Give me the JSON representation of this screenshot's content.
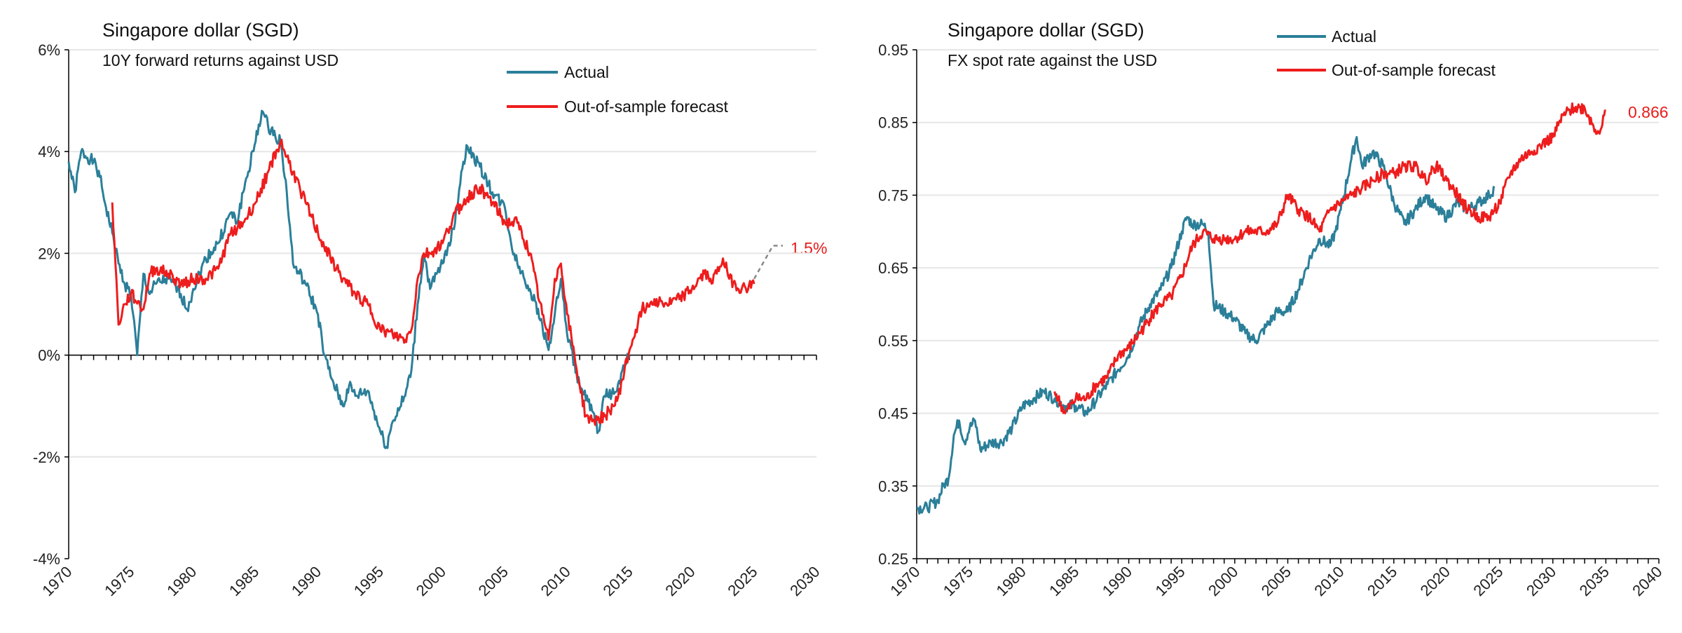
{
  "colors": {
    "actual": "#2b7f99",
    "forecast": "#ee1d1d",
    "dashed": "#888888",
    "grid": "#e6e6e6"
  },
  "chart_data": [
    {
      "type": "line",
      "title": "Singapore dollar (SGD)",
      "subtitle": "10Y forward returns against USD",
      "xlabel": "",
      "ylabel": "",
      "xlim": [
        1970,
        2030
      ],
      "ylim": [
        -4,
        6
      ],
      "xticks": [
        "1970",
        "1975",
        "1980",
        "1985",
        "1990",
        "1995",
        "2000",
        "2005",
        "2010",
        "2015",
        "2020",
        "2025",
        "2030"
      ],
      "yticks": [
        {
          "v": 6,
          "label": "6%"
        },
        {
          "v": 4,
          "label": "4%"
        },
        {
          "v": 2,
          "label": "2%"
        },
        {
          "v": 0,
          "label": "0%"
        },
        {
          "v": -2,
          "label": "-2%"
        },
        {
          "v": -4,
          "label": "-4%"
        }
      ],
      "grid": true,
      "legend_position": "top-right",
      "end_label": "1.5%",
      "series": [
        {
          "name": "Actual",
          "points": [
            [
              1970,
              3.8
            ],
            [
              1970.5,
              3.2
            ],
            [
              1971,
              4.0
            ],
            [
              1972,
              3.8
            ],
            [
              1972.5,
              3.5
            ],
            [
              1973,
              2.9
            ],
            [
              1973.5,
              2.4
            ],
            [
              1974,
              1.8
            ],
            [
              1974.5,
              1.4
            ],
            [
              1975,
              1.2
            ],
            [
              1975.5,
              0.0
            ],
            [
              1976,
              1.6
            ],
            [
              1976.5,
              1.2
            ],
            [
              1977,
              1.4
            ],
            [
              1978,
              1.5
            ],
            [
              1979,
              1.2
            ],
            [
              1979.5,
              0.9
            ],
            [
              1980,
              1.3
            ],
            [
              1981,
              1.9
            ],
            [
              1982,
              2.2
            ],
            [
              1983,
              2.8
            ],
            [
              1983.5,
              2.6
            ],
            [
              1984,
              3.2
            ],
            [
              1985,
              4.2
            ],
            [
              1985.5,
              4.8
            ],
            [
              1986,
              4.5
            ],
            [
              1987,
              4.2
            ],
            [
              1987.5,
              3.2
            ],
            [
              1988,
              1.8
            ],
            [
              1988.5,
              1.6
            ],
            [
              1989,
              1.4
            ],
            [
              1990,
              0.8
            ],
            [
              1990.5,
              0.0
            ],
            [
              1991,
              -0.4
            ],
            [
              1992,
              -1.0
            ],
            [
              1992.5,
              -0.6
            ],
            [
              1993,
              -0.8
            ],
            [
              1994,
              -0.7
            ],
            [
              1995,
              -1.5
            ],
            [
              1995.5,
              -1.8
            ],
            [
              1996,
              -1.3
            ],
            [
              1997,
              -0.8
            ],
            [
              1997.5,
              -0.3
            ],
            [
              1998,
              1.0
            ],
            [
              1998.5,
              2.0
            ],
            [
              1999,
              1.3
            ],
            [
              2000,
              1.8
            ],
            [
              2001,
              2.6
            ],
            [
              2001.5,
              3.6
            ],
            [
              2002,
              4.1
            ],
            [
              2003,
              3.7
            ],
            [
              2004,
              3.2
            ],
            [
              2005,
              2.9
            ],
            [
              2005.5,
              2.2
            ],
            [
              2006,
              1.8
            ],
            [
              2007,
              1.3
            ],
            [
              2008,
              0.6
            ],
            [
              2008.5,
              0.1
            ],
            [
              2009,
              0.8
            ],
            [
              2009.5,
              1.5
            ],
            [
              2010,
              0.4
            ],
            [
              2011,
              -0.6
            ],
            [
              2012,
              -1.1
            ],
            [
              2012.5,
              -1.5
            ],
            [
              2013,
              -0.8
            ],
            [
              2014,
              -0.7
            ],
            [
              2014.5,
              -0.2
            ],
            [
              2015,
              0.0
            ]
          ]
        },
        {
          "name": "Out-of-sample forecast",
          "points": [
            [
              1973.5,
              3.0
            ],
            [
              1974,
              0.6
            ],
            [
              1974.5,
              1.0
            ],
            [
              1975,
              1.2
            ],
            [
              1976,
              0.9
            ],
            [
              1976.5,
              1.6
            ],
            [
              1977,
              1.7
            ],
            [
              1978,
              1.6
            ],
            [
              1979,
              1.4
            ],
            [
              1980,
              1.5
            ],
            [
              1981,
              1.5
            ],
            [
              1982,
              1.7
            ],
            [
              1983,
              2.4
            ],
            [
              1984,
              2.6
            ],
            [
              1985,
              3.0
            ],
            [
              1986,
              3.6
            ],
            [
              1987,
              4.2
            ],
            [
              1988,
              3.6
            ],
            [
              1989,
              3.0
            ],
            [
              1990,
              2.4
            ],
            [
              1991,
              1.9
            ],
            [
              1992,
              1.5
            ],
            [
              1993,
              1.2
            ],
            [
              1994,
              1.0
            ],
            [
              1995,
              0.5
            ],
            [
              1996,
              0.4
            ],
            [
              1997,
              0.3
            ],
            [
              1997.5,
              0.5
            ],
            [
              1998,
              1.5
            ],
            [
              1998.5,
              2.0
            ],
            [
              1999,
              2.0
            ],
            [
              2000,
              2.2
            ],
            [
              2001,
              2.8
            ],
            [
              2002,
              3.1
            ],
            [
              2003,
              3.3
            ],
            [
              2004,
              3.0
            ],
            [
              2005,
              2.6
            ],
            [
              2006,
              2.6
            ],
            [
              2007,
              2.0
            ],
            [
              2008,
              0.8
            ],
            [
              2008.5,
              0.3
            ],
            [
              2009,
              1.5
            ],
            [
              2009.5,
              1.8
            ],
            [
              2010,
              0.8
            ],
            [
              2011,
              -0.6
            ],
            [
              2011.5,
              -1.2
            ],
            [
              2012,
              -1.3
            ],
            [
              2013,
              -1.2
            ],
            [
              2014,
              -0.9
            ],
            [
              2015,
              0.1
            ],
            [
              2016,
              0.9
            ],
            [
              2017,
              1.1
            ],
            [
              2018,
              1.0
            ],
            [
              2019,
              1.1
            ],
            [
              2020,
              1.3
            ],
            [
              2021,
              1.6
            ],
            [
              2021.5,
              1.5
            ],
            [
              2022,
              1.6
            ],
            [
              2022.5,
              1.9
            ],
            [
              2023,
              1.5
            ],
            [
              2024,
              1.3
            ],
            [
              2025,
              1.4
            ]
          ]
        },
        {
          "name": "projection",
          "dashed": true,
          "points": [
            [
              2025,
              1.5
            ],
            [
              2026.5,
              2.15
            ],
            [
              2027.3,
              2.15
            ]
          ]
        }
      ]
    },
    {
      "type": "line",
      "title": "Singapore dollar (SGD)",
      "subtitle": "FX spot rate against the USD",
      "xlabel": "",
      "ylabel": "",
      "xlim": [
        1970,
        2040
      ],
      "ylim": [
        0.25,
        0.95
      ],
      "xticks": [
        "1970",
        "1975",
        "1980",
        "1985",
        "1990",
        "1995",
        "2000",
        "2005",
        "2010",
        "2015",
        "2020",
        "2025",
        "2030",
        "2035",
        "2040"
      ],
      "yticks": [
        {
          "v": 0.95,
          "label": "0.95"
        },
        {
          "v": 0.85,
          "label": "0.85"
        },
        {
          "v": 0.75,
          "label": "0.75"
        },
        {
          "v": 0.65,
          "label": "0.65"
        },
        {
          "v": 0.55,
          "label": "0.55"
        },
        {
          "v": 0.45,
          "label": "0.45"
        },
        {
          "v": 0.35,
          "label": "0.35"
        },
        {
          "v": 0.25,
          "label": "0.25"
        }
      ],
      "grid": true,
      "legend_position": "top-center",
      "end_label": "0.866",
      "series": [
        {
          "name": "Actual",
          "points": [
            [
              1970,
              0.32
            ],
            [
              1971,
              0.32
            ],
            [
              1972,
              0.33
            ],
            [
              1972.5,
              0.35
            ],
            [
              1973,
              0.36
            ],
            [
              1973.5,
              0.42
            ],
            [
              1974,
              0.44
            ],
            [
              1974.5,
              0.41
            ],
            [
              1975,
              0.43
            ],
            [
              1975.5,
              0.44
            ],
            [
              1976,
              0.4
            ],
            [
              1977,
              0.41
            ],
            [
              1978,
              0.41
            ],
            [
              1979,
              0.43
            ],
            [
              1980,
              0.46
            ],
            [
              1981,
              0.47
            ],
            [
              1982,
              0.48
            ],
            [
              1983,
              0.47
            ],
            [
              1984,
              0.46
            ],
            [
              1985,
              0.46
            ],
            [
              1986,
              0.45
            ],
            [
              1987,
              0.47
            ],
            [
              1988,
              0.49
            ],
            [
              1989,
              0.51
            ],
            [
              1990,
              0.53
            ],
            [
              1991,
              0.57
            ],
            [
              1992,
              0.6
            ],
            [
              1993,
              0.62
            ],
            [
              1994,
              0.65
            ],
            [
              1995,
              0.7
            ],
            [
              1995.5,
              0.72
            ],
            [
              1996,
              0.71
            ],
            [
              1997,
              0.71
            ],
            [
              1997.5,
              0.7
            ],
            [
              1998,
              0.6
            ],
            [
              1999,
              0.59
            ],
            [
              2000,
              0.58
            ],
            [
              2001,
              0.56
            ],
            [
              2002,
              0.55
            ],
            [
              2003,
              0.57
            ],
            [
              2004,
              0.59
            ],
            [
              2005,
              0.59
            ],
            [
              2006,
              0.62
            ],
            [
              2007,
              0.66
            ],
            [
              2008,
              0.69
            ],
            [
              2009,
              0.68
            ],
            [
              2009.5,
              0.7
            ],
            [
              2010,
              0.73
            ],
            [
              2011,
              0.8
            ],
            [
              2011.5,
              0.83
            ],
            [
              2012,
              0.79
            ],
            [
              2013,
              0.81
            ],
            [
              2014,
              0.79
            ],
            [
              2015,
              0.74
            ],
            [
              2016,
              0.71
            ],
            [
              2017,
              0.73
            ],
            [
              2018,
              0.75
            ],
            [
              2019,
              0.73
            ],
            [
              2020,
              0.72
            ],
            [
              2021,
              0.74
            ],
            [
              2022,
              0.73
            ],
            [
              2023,
              0.74
            ],
            [
              2024,
              0.75
            ],
            [
              2024.5,
              0.76
            ]
          ]
        },
        {
          "name": "Out-of-sample forecast",
          "points": [
            [
              1983,
              0.48
            ],
            [
              1984,
              0.45
            ],
            [
              1985,
              0.47
            ],
            [
              1986,
              0.47
            ],
            [
              1987,
              0.49
            ],
            [
              1988,
              0.5
            ],
            [
              1989,
              0.53
            ],
            [
              1990,
              0.54
            ],
            [
              1991,
              0.56
            ],
            [
              1992,
              0.58
            ],
            [
              1993,
              0.6
            ],
            [
              1994,
              0.61
            ],
            [
              1995,
              0.64
            ],
            [
              1996,
              0.68
            ],
            [
              1997,
              0.7
            ],
            [
              1998,
              0.69
            ],
            [
              1999,
              0.69
            ],
            [
              2000,
              0.69
            ],
            [
              2001,
              0.7
            ],
            [
              2002,
              0.7
            ],
            [
              2003,
              0.7
            ],
            [
              2004,
              0.71
            ],
            [
              2005,
              0.75
            ],
            [
              2006,
              0.73
            ],
            [
              2007,
              0.72
            ],
            [
              2008,
              0.7
            ],
            [
              2009,
              0.73
            ],
            [
              2010,
              0.74
            ],
            [
              2011,
              0.75
            ],
            [
              2012,
              0.76
            ],
            [
              2013,
              0.77
            ],
            [
              2014,
              0.78
            ],
            [
              2015,
              0.78
            ],
            [
              2016,
              0.79
            ],
            [
              2017,
              0.79
            ],
            [
              2018,
              0.77
            ],
            [
              2019,
              0.79
            ],
            [
              2020,
              0.77
            ],
            [
              2021,
              0.75
            ],
            [
              2022,
              0.73
            ],
            [
              2023,
              0.72
            ],
            [
              2024,
              0.72
            ],
            [
              2025,
              0.74
            ],
            [
              2026,
              0.78
            ],
            [
              2027,
              0.8
            ],
            [
              2028,
              0.81
            ],
            [
              2029,
              0.82
            ],
            [
              2030,
              0.83
            ],
            [
              2031,
              0.86
            ],
            [
              2032,
              0.87
            ],
            [
              2033,
              0.87
            ],
            [
              2034,
              0.84
            ],
            [
              2034.5,
              0.84
            ],
            [
              2035,
              0.866
            ]
          ]
        }
      ]
    }
  ]
}
